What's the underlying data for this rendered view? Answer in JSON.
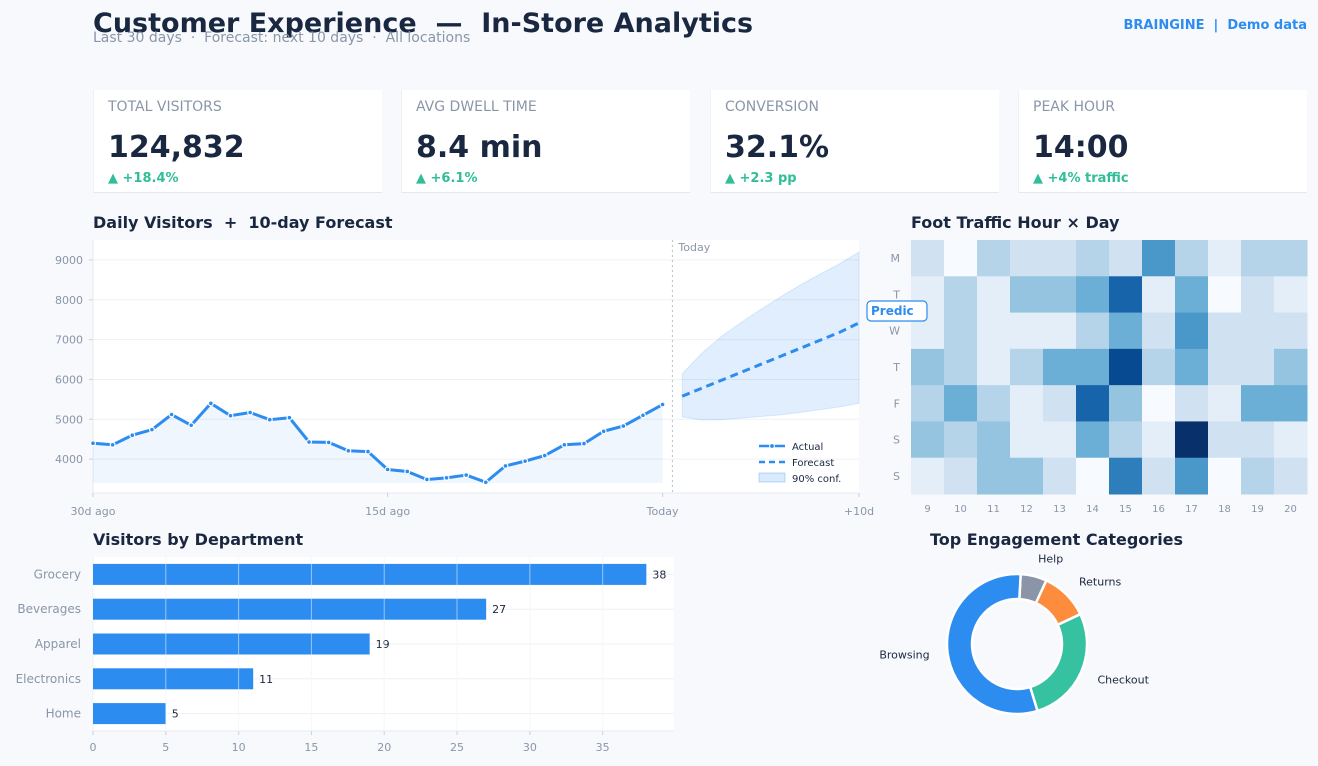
{
  "header": {
    "title": "Customer Experience  —  In-Store Analytics",
    "subtitle": "Last 30 days  ·  Forecast: next 10 days  ·  All locations",
    "brand": "BRAINGINE  |  Demo data"
  },
  "kpis": [
    {
      "label": "TOTAL VISITORS",
      "value": "124,832",
      "delta": "▲ +18.4%"
    },
    {
      "label": "AVG DWELL TIME",
      "value": "8.4 min",
      "delta": "▲ +6.1%"
    },
    {
      "label": "CONVERSION",
      "value": "32.1%",
      "delta": "▲ +2.3 pp"
    },
    {
      "label": "PEAK HOUR",
      "value": "14:00",
      "delta": "▲ +4% traffic"
    }
  ],
  "colors": {
    "accent": "#2d8cf0",
    "positive": "#2fbe98",
    "orange": "#fd8d3c",
    "gray": "#8a96a8"
  },
  "chart_data": [
    {
      "type": "line",
      "title": "Daily Visitors  +  10-day Forecast",
      "x_ticks": [
        {
          "x": 0,
          "label": "30d ago"
        },
        {
          "x": 15,
          "label": "15d ago"
        },
        {
          "x": 29,
          "label": "Today"
        },
        {
          "x": 39,
          "label": "+10d"
        }
      ],
      "y_ticks": [
        4000,
        5000,
        6000,
        7000,
        8000,
        9000
      ],
      "xlim": [
        0,
        39
      ],
      "ylim": [
        3150,
        9500
      ],
      "grid": true,
      "today_marker": {
        "x": 29.5,
        "label": "Today"
      },
      "side_tag": "Predic",
      "legend_position": "bottom-right",
      "series": [
        {
          "name": "Actual",
          "style": "solid",
          "x": [
            0,
            1,
            2,
            3,
            4,
            5,
            6,
            7,
            8,
            9,
            10,
            11,
            12,
            13,
            14,
            15,
            16,
            17,
            18,
            19,
            20,
            21,
            22,
            23,
            24,
            25,
            26,
            27,
            28,
            29
          ],
          "values": [
            4400,
            4360,
            4600,
            4740,
            5120,
            4850,
            5400,
            5090,
            5170,
            4990,
            5040,
            4430,
            4420,
            4210,
            4190,
            3740,
            3690,
            3490,
            3530,
            3600,
            3420,
            3830,
            3950,
            4090,
            4360,
            4390,
            4700,
            4830,
            5100,
            5370
          ]
        },
        {
          "name": "Forecast",
          "style": "dashed",
          "x": [
            30,
            31,
            32,
            33,
            34,
            35,
            36,
            37,
            38,
            39
          ],
          "values": [
            5580,
            5780,
            5980,
            6180,
            6380,
            6580,
            6780,
            6980,
            7180,
            7420
          ]
        },
        {
          "name": "90% conf.",
          "style": "band",
          "x": [
            30,
            31,
            32,
            33,
            34,
            35,
            36,
            37,
            38,
            39
          ],
          "lower": [
            5060,
            4980,
            4990,
            5030,
            5070,
            5110,
            5170,
            5240,
            5310,
            5400
          ],
          "upper": [
            6140,
            6660,
            7080,
            7430,
            7760,
            8070,
            8370,
            8640,
            8900,
            9200
          ]
        }
      ]
    },
    {
      "type": "heatmap",
      "title": "Foot Traffic Hour × Day",
      "rows": [
        "M",
        "T",
        "W",
        "T",
        "F",
        "S",
        "S"
      ],
      "columns": [
        "9",
        "10",
        "11",
        "12",
        "13",
        "14",
        "15",
        "16",
        "17",
        "18",
        "19",
        "20"
      ],
      "values": [
        [
          2,
          0,
          3,
          2,
          2,
          3,
          2,
          6,
          3,
          1,
          3,
          3
        ],
        [
          1,
          3,
          1,
          4,
          4,
          5,
          8,
          1,
          5,
          0,
          2,
          1
        ],
        [
          1,
          3,
          1,
          1,
          1,
          3,
          5,
          2,
          6,
          2,
          2,
          2
        ],
        [
          4,
          3,
          1,
          3,
          5,
          5,
          9,
          3,
          5,
          2,
          2,
          4
        ],
        [
          3,
          5,
          3,
          1,
          2,
          8,
          4,
          0,
          2,
          1,
          5,
          5
        ],
        [
          4,
          3,
          4,
          1,
          1,
          5,
          3,
          1,
          10,
          2,
          2,
          1
        ],
        [
          1,
          2,
          4,
          4,
          2,
          0,
          7,
          2,
          6,
          0,
          3,
          2
        ]
      ],
      "colormap": "blues"
    },
    {
      "type": "bar",
      "orientation": "horizontal",
      "title": "Visitors by Department",
      "categories": [
        "Grocery",
        "Beverages",
        "Apparel",
        "Electronics",
        "Home"
      ],
      "values": [
        38,
        27,
        19,
        11,
        5
      ],
      "x_ticks": [
        0,
        5,
        10,
        15,
        20,
        25,
        30,
        35
      ],
      "xlim": [
        0,
        39.9
      ],
      "grid": true
    },
    {
      "type": "pie",
      "style": "donut",
      "title": "Top Engagement Categories",
      "categories": [
        "Browsing",
        "Checkout",
        "Returns",
        "Help"
      ],
      "values": [
        55,
        27,
        11,
        6
      ],
      "colors": [
        "#2d8cf0",
        "#36c2a0",
        "#fd8d3c",
        "#8a96a8"
      ]
    }
  ]
}
